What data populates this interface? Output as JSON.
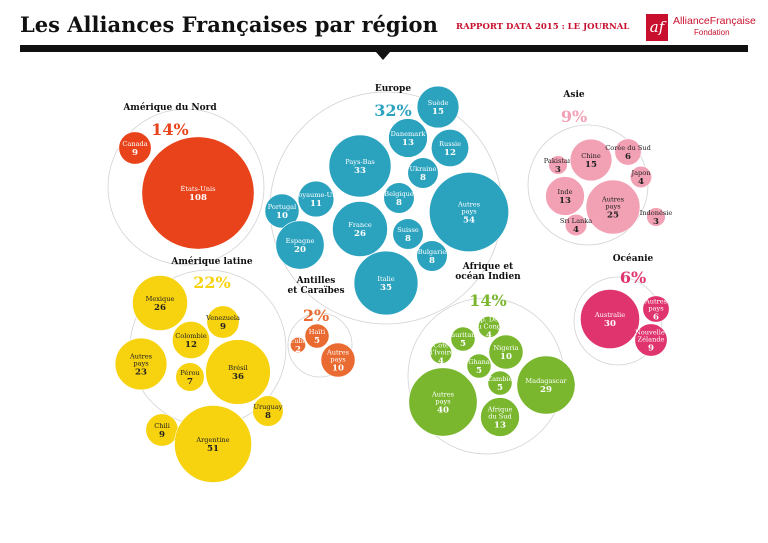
{
  "header": {
    "title": "Les Alliances Françaises par région",
    "report_label": "RAPPORT DATA 2015 : LE JOURNAL",
    "logo": {
      "mark": "af",
      "name": "AllianceFrançaise",
      "subtitle": "Fondation"
    }
  },
  "colors": {
    "amerique_du_nord": "#e8431a",
    "europe": "#2ba3bf",
    "asie": "#f2a1b4",
    "amerique_latine": "#f7d20f",
    "antilles": "#e96b31",
    "afrique": "#7ab72f",
    "oceanie": "#e0346e"
  },
  "chart_data": {
    "type": "bubble",
    "title": "Les Alliances Françaises par région",
    "regions": [
      {
        "name": "Amérique du Nord",
        "share": "14%",
        "color": "#e8431a",
        "items": [
          {
            "label": "Canada",
            "value": 9
          },
          {
            "label": "États-Unis",
            "value": 108
          }
        ]
      },
      {
        "name": "Europe",
        "share": "32%",
        "color": "#2ba3bf",
        "items": [
          {
            "label": "Suède",
            "value": 15
          },
          {
            "label": "Danemark",
            "value": 13
          },
          {
            "label": "Russie",
            "value": 12
          },
          {
            "label": "Pays-Bas",
            "value": 33
          },
          {
            "label": "Ukraine",
            "value": 8
          },
          {
            "label": "Royaume-Uni",
            "value": 11
          },
          {
            "label": "Belgique",
            "value": 8
          },
          {
            "label": "Portugal",
            "value": 10
          },
          {
            "label": "France",
            "value": 26
          },
          {
            "label": "Suisse",
            "value": 8
          },
          {
            "label": "Espagne",
            "value": 20
          },
          {
            "label": "Bulgarie",
            "value": 8
          },
          {
            "label": "Italie",
            "value": 35
          },
          {
            "label": "Autres pays",
            "value": 54
          }
        ]
      },
      {
        "name": "Asie",
        "share": "9%",
        "color": "#f2a1b4",
        "items": [
          {
            "label": "Pakistan",
            "value": 3
          },
          {
            "label": "Chine",
            "value": 15
          },
          {
            "label": "Corée du Sud",
            "value": 6
          },
          {
            "label": "Japon",
            "value": 4
          },
          {
            "label": "Inde",
            "value": 13
          },
          {
            "label": "Autres pays",
            "value": 25
          },
          {
            "label": "Indonésie",
            "value": 3
          },
          {
            "label": "Sri Lanka",
            "value": 4
          }
        ]
      },
      {
        "name": "Amérique latine",
        "share": "22%",
        "color": "#f7d20f",
        "items": [
          {
            "label": "Mexique",
            "value": 26
          },
          {
            "label": "Venezuela",
            "value": 9
          },
          {
            "label": "Colombie",
            "value": 12
          },
          {
            "label": "Autres pays",
            "value": 23
          },
          {
            "label": "Brésil",
            "value": 36
          },
          {
            "label": "Pérou",
            "value": 7
          },
          {
            "label": "Uruguay",
            "value": 8
          },
          {
            "label": "Chili",
            "value": 9
          },
          {
            "label": "Argentine",
            "value": 51
          }
        ]
      },
      {
        "name": "Antilles et Caraïbes",
        "share": "2%",
        "color": "#e96b31",
        "items": [
          {
            "label": "Haïti",
            "value": 5
          },
          {
            "label": "Cuba",
            "value": 2
          },
          {
            "label": "Autres pays",
            "value": 10
          }
        ]
      },
      {
        "name": "Afrique et océan Indien",
        "share": "14%",
        "color": "#7ab72f",
        "items": [
          {
            "label": "Rép. Dém. du Congo",
            "value": 4
          },
          {
            "label": "Mauritanie",
            "value": 5
          },
          {
            "label": "Côte d'Ivoire",
            "value": 4
          },
          {
            "label": "Nigeria",
            "value": 10
          },
          {
            "label": "Ghana",
            "value": 5
          },
          {
            "label": "Zambie",
            "value": 5
          },
          {
            "label": "Madagascar",
            "value": 29
          },
          {
            "label": "Autres pays",
            "value": 40
          },
          {
            "label": "Afrique du Sud",
            "value": 13
          }
        ]
      },
      {
        "name": "Océanie",
        "share": "6%",
        "color": "#e0346e",
        "items": [
          {
            "label": "Australie",
            "value": 30
          },
          {
            "label": "Autres pays",
            "value": 6
          },
          {
            "label": "Nouvelle-Zélande",
            "value": 9
          }
        ]
      }
    ]
  }
}
